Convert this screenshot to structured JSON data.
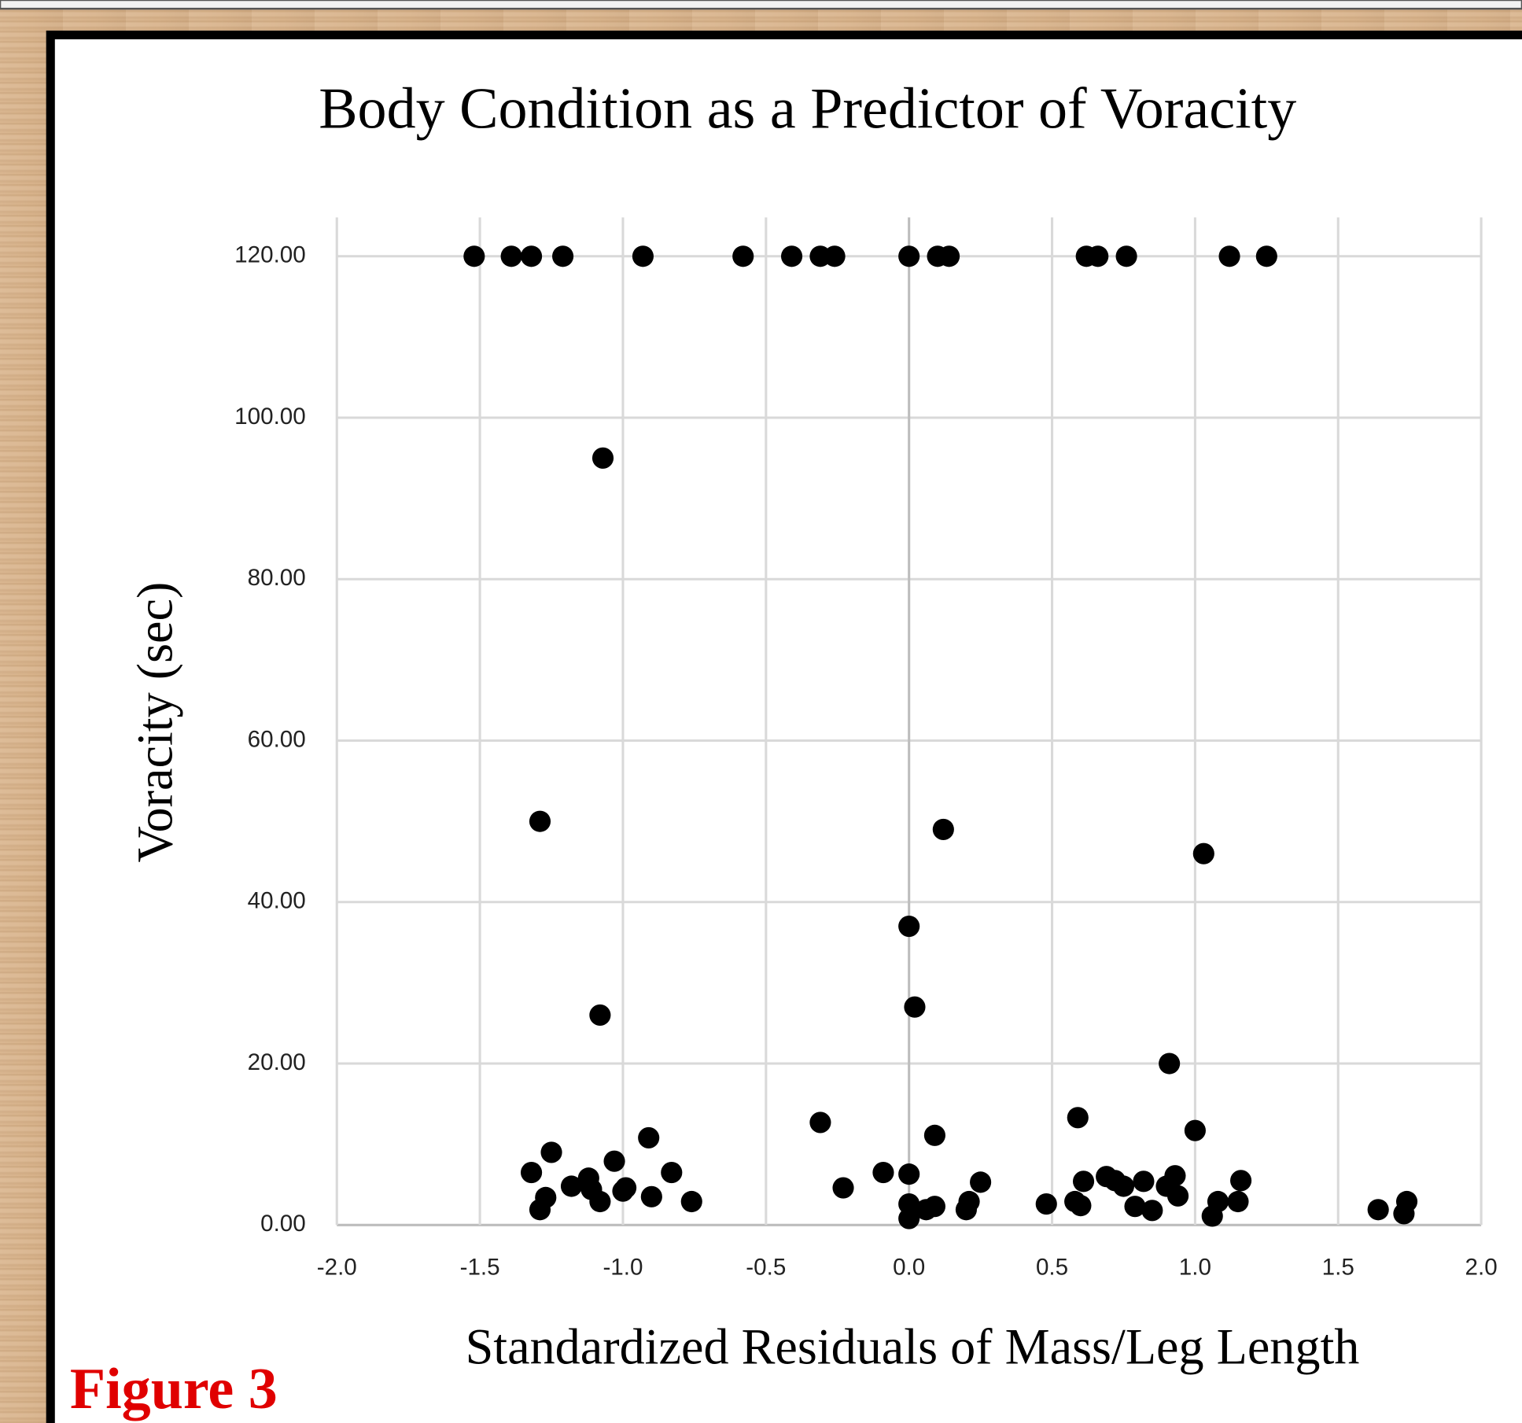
{
  "chart_data": {
    "type": "scatter",
    "title": "Body Condition as a Predictor of Voracity",
    "x_label": "Standardized Residuals of Mass/Leg Length",
    "y_label": "Voracity (sec)",
    "annotation": "Figure 3",
    "color": "#000000",
    "grid": true,
    "xlim": [
      -2.0,
      2.0
    ],
    "ylim": [
      0,
      120
    ],
    "xticks": [
      {
        "value": -2.0,
        "label": "-2.0"
      },
      {
        "value": -1.5,
        "label": "-1.5"
      },
      {
        "value": -1.0,
        "label": "-1.0"
      },
      {
        "value": -0.5,
        "label": "-0.5"
      },
      {
        "value": 0,
        "label": "0.0"
      },
      {
        "value": 0.5,
        "label": "0.5"
      },
      {
        "value": 1.0,
        "label": "1.0"
      },
      {
        "value": 1.5,
        "label": "1.5"
      },
      {
        "value": 2.0,
        "label": "2.0"
      }
    ],
    "yticks": [
      {
        "value": 0,
        "label": "0.00"
      },
      {
        "value": 20,
        "label": "20.00"
      },
      {
        "value": 40,
        "label": "40.00"
      },
      {
        "value": 60,
        "label": "60.00"
      },
      {
        "value": 80,
        "label": "80.00"
      },
      {
        "value": 100,
        "label": "100.00"
      },
      {
        "value": 120,
        "label": "120.00"
      }
    ],
    "x": [
      -1.52,
      -1.39,
      -1.32,
      -1.21,
      -0.93,
      -0.58,
      -0.41,
      -0.31,
      -0.26,
      0.0,
      0.1,
      0.14,
      0.62,
      0.66,
      0.76,
      1.12,
      1.25,
      -1.07,
      -1.29,
      0.12,
      1.03,
      0.0,
      0.02,
      -1.08,
      0.91,
      0.59,
      -0.31,
      1.0,
      0.09,
      -0.91,
      -1.25,
      -1.03,
      -1.32,
      -0.83,
      -0.09,
      0.0,
      0.69,
      0.72,
      0.93,
      1.16,
      0.61,
      0.25,
      0.82,
      0.75,
      0.9,
      -0.23,
      -1.18,
      -1.12,
      -1.11,
      -1.0,
      -0.99,
      0.94,
      -0.9,
      -1.27,
      -1.08,
      -0.76,
      0.48,
      0.58,
      0.6,
      1.08,
      1.15,
      0.0,
      0.21,
      0.09,
      0.06,
      0.79,
      0.85,
      0.2,
      -1.29,
      1.74,
      1.64,
      1.73,
      1.06,
      0.0
    ],
    "values": [
      120,
      120,
      120,
      120,
      120,
      120,
      120,
      120,
      120,
      120,
      120,
      120,
      120,
      120,
      120,
      120,
      120,
      95,
      50,
      49,
      46,
      37,
      27,
      26,
      20,
      13.3,
      12.7,
      11.7,
      11.1,
      10.8,
      9.0,
      7.9,
      6.5,
      6.5,
      6.5,
      6.3,
      6.0,
      5.5,
      6.1,
      5.5,
      5.4,
      5.3,
      5.4,
      4.8,
      4.8,
      4.6,
      4.8,
      5.8,
      4.4,
      4.2,
      4.6,
      3.6,
      3.5,
      3.4,
      2.9,
      2.9,
      2.6,
      2.9,
      2.4,
      2.9,
      2.9,
      2.6,
      2.9,
      2.3,
      1.9,
      2.3,
      1.8,
      1.9,
      1.9,
      2.9,
      1.9,
      1.4,
      1.1,
      0.8
    ]
  }
}
